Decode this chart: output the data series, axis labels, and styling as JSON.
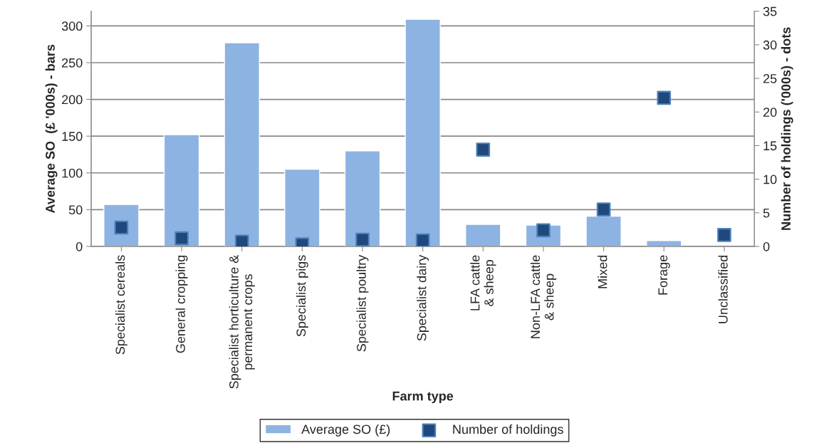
{
  "chart_data": {
    "type": "bar",
    "xlabel": "Farm type",
    "ylabel": "Average SO  (£ '000s) - bars",
    "y2label": "Number of holdings ('000s) - dots",
    "categories": [
      "Specialist cereals",
      "General cropping",
      "Specialist horticulture &\npermanent crops",
      "Specialist pigs",
      "Specialist poultry",
      "Specialist dairy",
      "LFA cattle\n& sheep",
      "Non-LFA cattle\n& sheep",
      "Mixed",
      "Forage",
      "Unclassified"
    ],
    "series": [
      {
        "name": "Average SO (£)",
        "color": "#8db3e2",
        "values": [
          57,
          152,
          277,
          105,
          130,
          309,
          30,
          29,
          41,
          8,
          null
        ]
      },
      {
        "name": "Number of holdings",
        "type": "scatter",
        "axis": "y2",
        "color": "#1f497d",
        "marker": "square",
        "values": [
          2.8,
          1.2,
          0.7,
          0.3,
          1.0,
          0.9,
          14.4,
          2.4,
          5.5,
          22.1,
          1.7
        ]
      }
    ],
    "ylim": [
      0,
      320
    ],
    "yticks": [
      0,
      50,
      100,
      150,
      200,
      250,
      300
    ],
    "y2lim": [
      0,
      35
    ],
    "y2ticks": [
      0,
      5,
      10,
      15,
      20,
      25,
      30,
      35
    ],
    "grid": "y",
    "legend": "bottom"
  }
}
